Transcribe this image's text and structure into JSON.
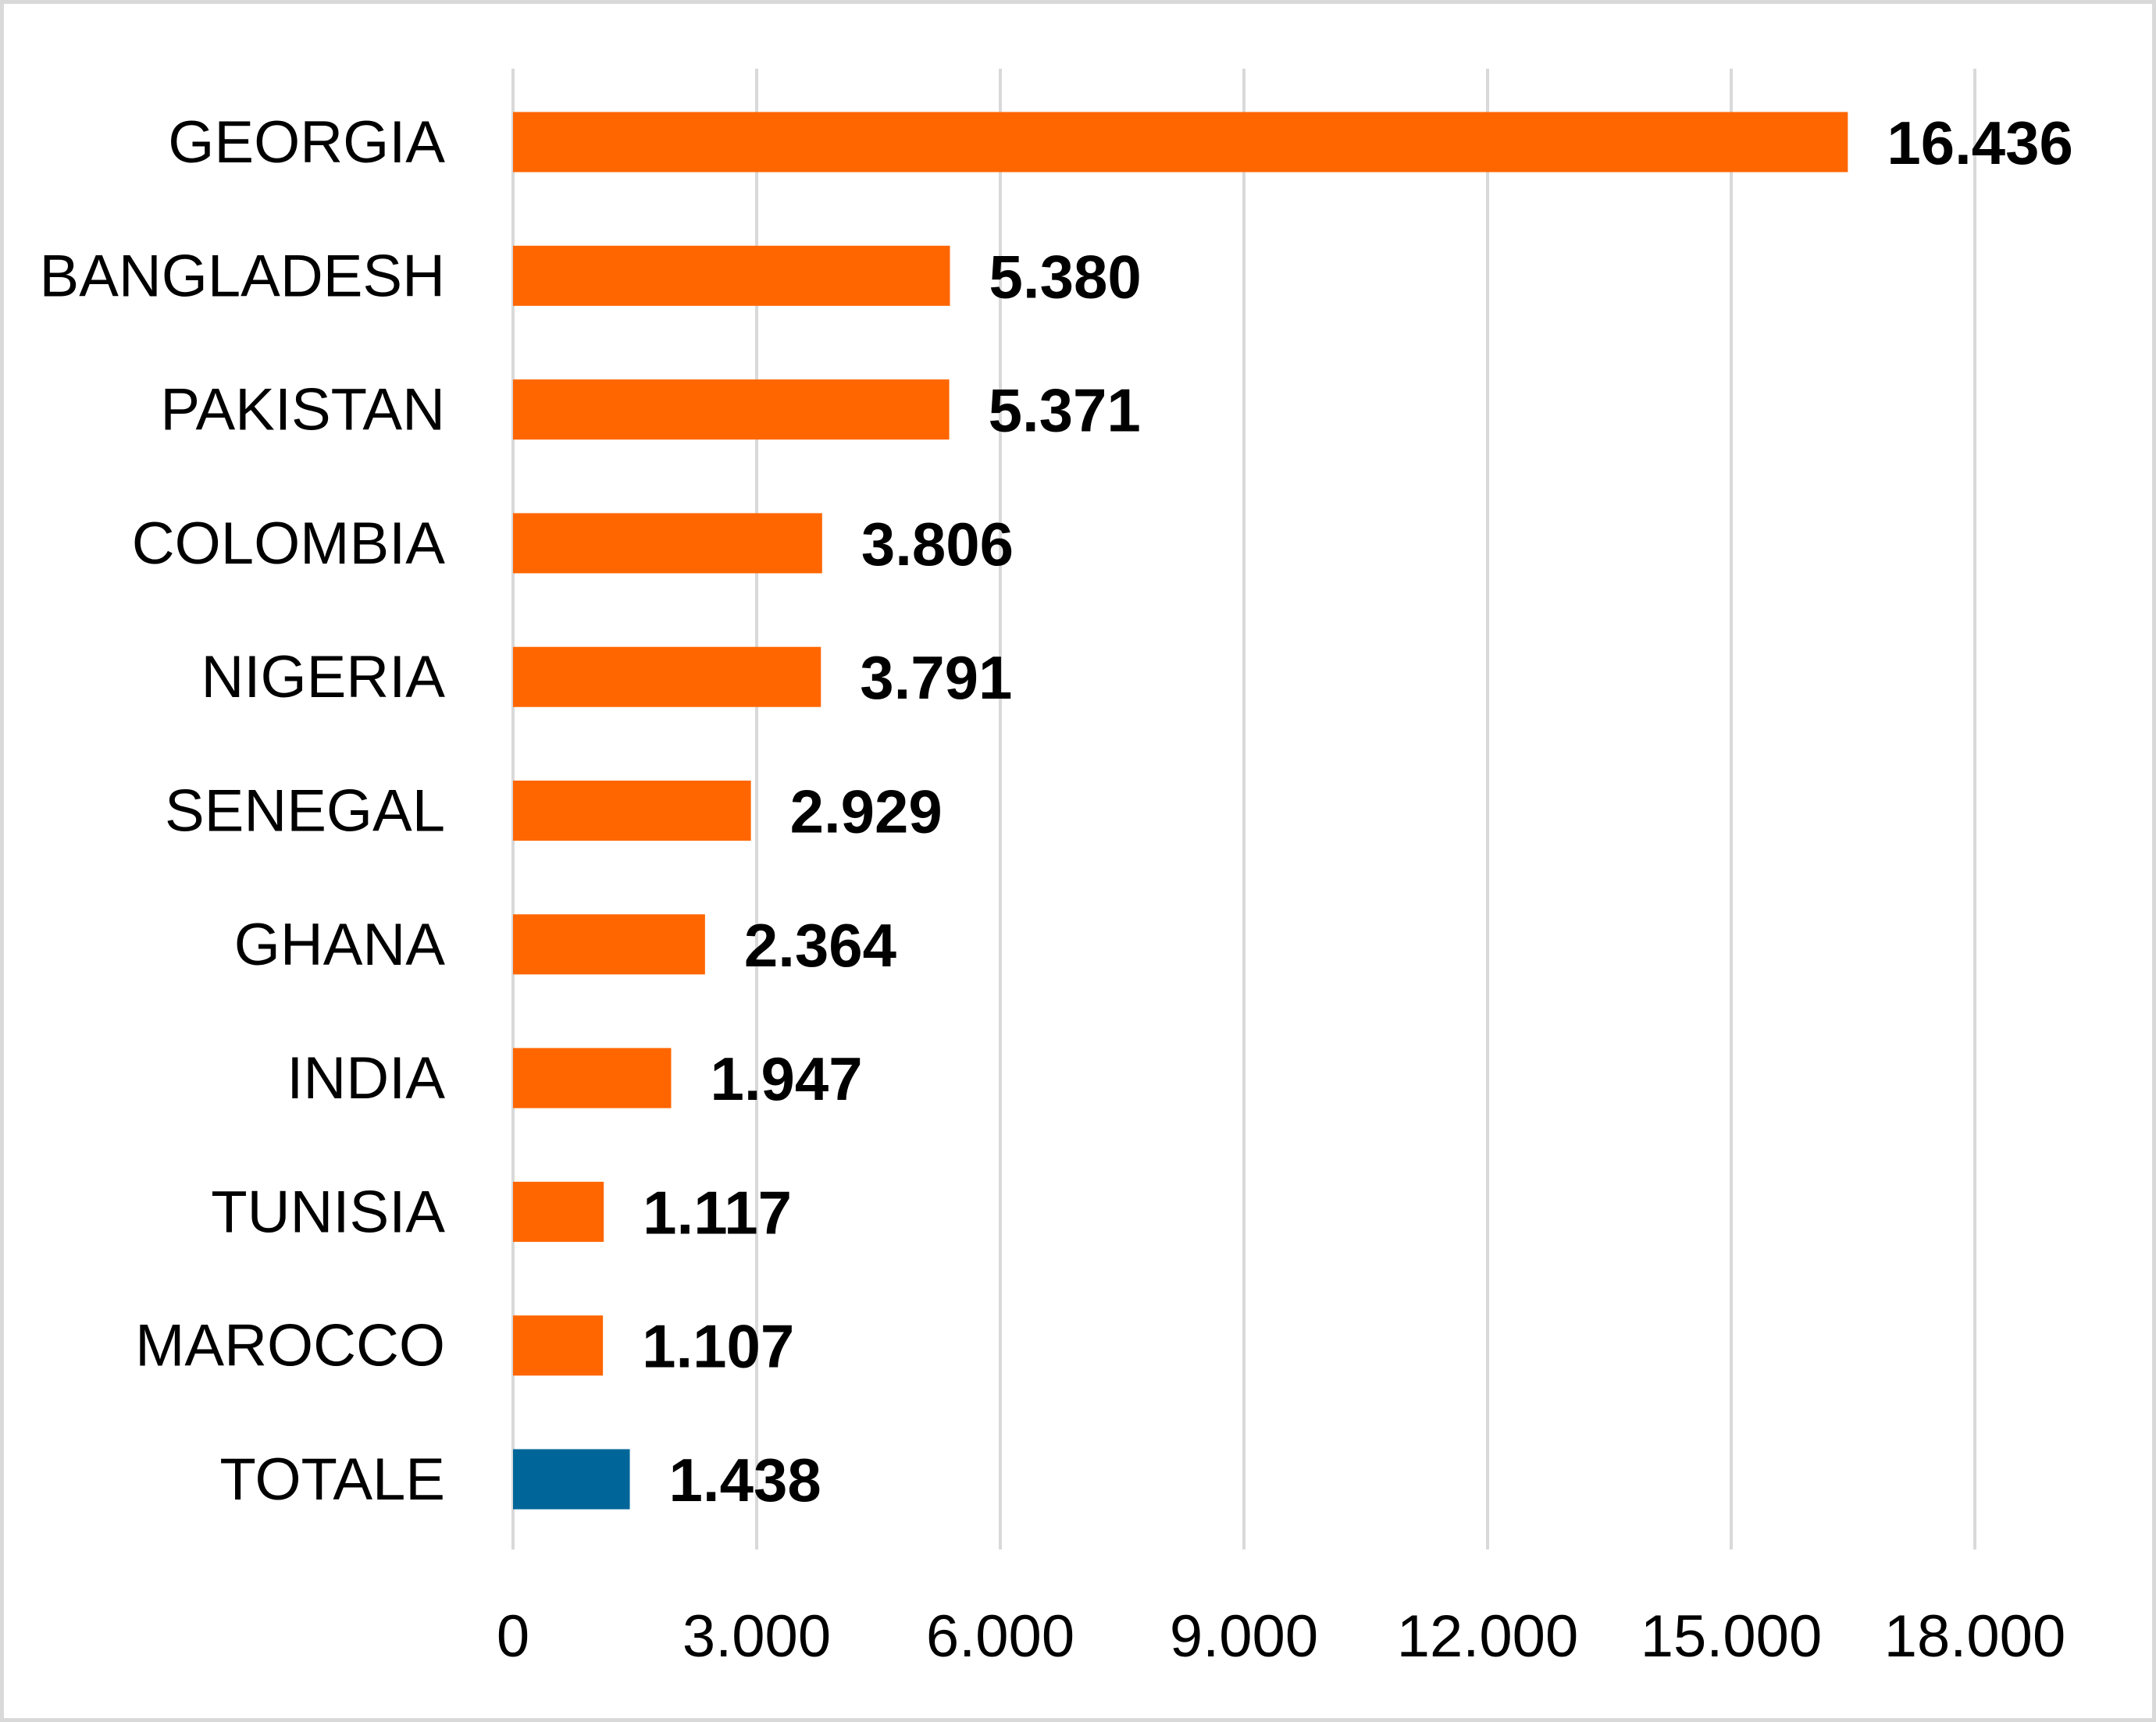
{
  "chart_data": {
    "type": "bar",
    "orientation": "horizontal",
    "title": "",
    "xlabel": "",
    "ylabel": "",
    "categories": [
      "GEORGIA",
      "BANGLADESH",
      "PAKISTAN",
      "COLOMBIA",
      "NIGERIA",
      "SENEGAL",
      "GHANA",
      "INDIA",
      "TUNISIA",
      "MAROCCO",
      "TOTALE"
    ],
    "values": [
      16436,
      5380,
      5371,
      3806,
      3791,
      2929,
      2364,
      1947,
      1117,
      1107,
      1438
    ],
    "value_labels": [
      "16.436",
      "5.380",
      "5.371",
      "3.806",
      "3.791",
      "2.929",
      "2.364",
      "1.947",
      "1.117",
      "1.107",
      "1.438"
    ],
    "bar_colors": [
      "#ff6600",
      "#ff6600",
      "#ff6600",
      "#ff6600",
      "#ff6600",
      "#ff6600",
      "#ff6600",
      "#ff6600",
      "#ff6600",
      "#ff6600",
      "#006699"
    ],
    "xlim": [
      0,
      18000
    ],
    "x_ticks": [
      0,
      3000,
      6000,
      9000,
      12000,
      15000,
      18000
    ],
    "x_tick_labels": [
      "0",
      "3.000",
      "6.000",
      "9.000",
      "12.000",
      "15.000",
      "18.000"
    ],
    "grid": true,
    "legend": "none"
  }
}
